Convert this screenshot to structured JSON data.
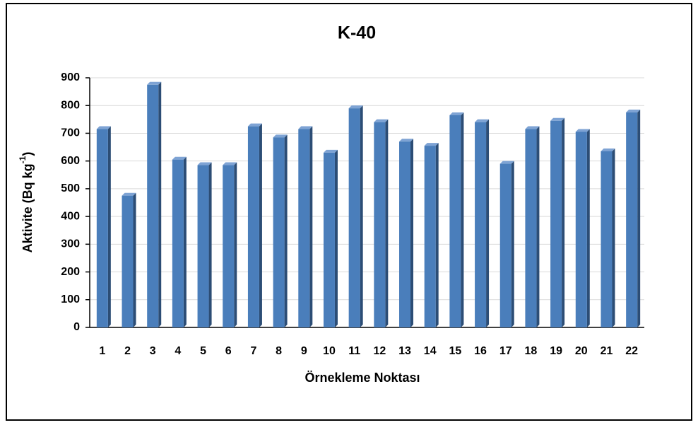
{
  "chart_data": {
    "type": "bar",
    "title": "K-40",
    "xlabel": "Örnekleme Noktası",
    "ylabel": {
      "text": "Aktivite (Bq kg",
      "superscript": "-1",
      "suffix": ")"
    },
    "categories": [
      "1",
      "2",
      "3",
      "4",
      "5",
      "6",
      "7",
      "8",
      "9",
      "10",
      "11",
      "12",
      "13",
      "14",
      "15",
      "16",
      "17",
      "18",
      "19",
      "20",
      "21",
      "22"
    ],
    "values": [
      715,
      475,
      875,
      605,
      585,
      585,
      725,
      685,
      715,
      630,
      790,
      740,
      670,
      655,
      765,
      740,
      590,
      715,
      745,
      705,
      635,
      775
    ],
    "color": "#4a7ebb",
    "ylim": [
      0,
      900
    ],
    "yticks": [
      0,
      100,
      200,
      300,
      400,
      500,
      600,
      700,
      800,
      900
    ],
    "grid": true
  }
}
